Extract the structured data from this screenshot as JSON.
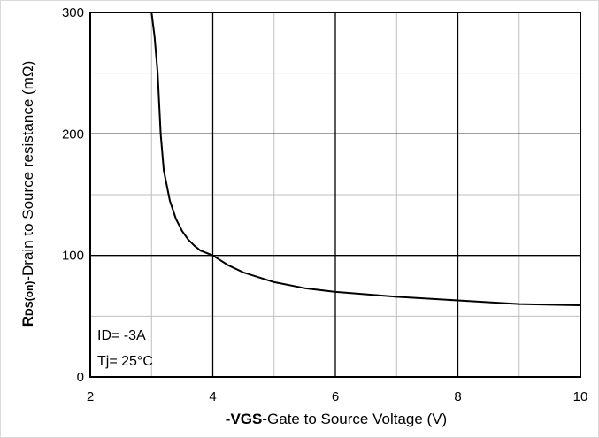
{
  "chart_data": {
    "type": "line",
    "x": [
      3.0,
      3.05,
      3.1,
      3.15,
      3.2,
      3.3,
      3.4,
      3.5,
      3.6,
      3.7,
      3.8,
      3.9,
      4.0,
      4.25,
      4.5,
      5.0,
      5.5,
      6.0,
      7.0,
      8.0,
      9.0,
      10.0
    ],
    "series": [
      {
        "values": [
          300,
          280,
          250,
          200,
          170,
          145,
          130,
          120,
          113,
          108,
          104,
          102,
          100,
          92,
          86,
          78,
          73,
          70,
          66,
          63,
          60,
          59
        ]
      }
    ],
    "xlim": [
      2,
      10
    ],
    "ylim": [
      0,
      300
    ],
    "xticks": [
      2,
      4,
      6,
      8,
      10
    ],
    "yticks": [
      0,
      100,
      200,
      300
    ],
    "grid": true,
    "ylabel_parts": {
      "main": "R",
      "sub": "DS(on)",
      "rest": "-Drain to Source resistance (mΩ)"
    },
    "xlabel_parts": {
      "main": "-VGS",
      "rest": "-Gate to Source Voltage (V)"
    },
    "annotations": [
      "ID= -3A",
      "Tj= 25°C"
    ],
    "line_color": "#000000",
    "grid_color": "#000000"
  }
}
